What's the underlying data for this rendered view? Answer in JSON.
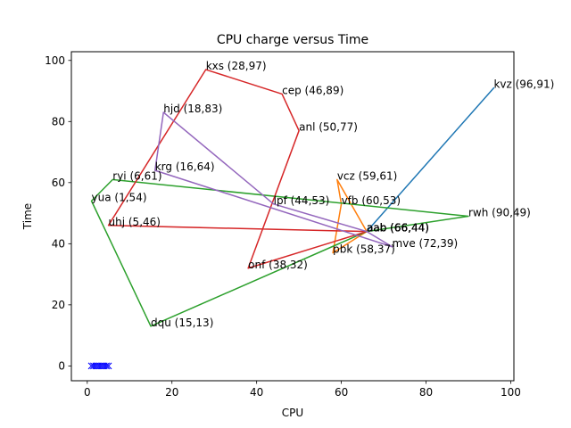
{
  "chart_data": {
    "type": "line",
    "title": "CPU charge versus Time",
    "xlabel": "CPU",
    "ylabel": "Time",
    "xlim": [
      -3.75,
      100.75
    ],
    "ylim": [
      -4.85,
      102.85
    ],
    "xticks": [
      0,
      20,
      40,
      60,
      80,
      100
    ],
    "yticks": [
      0,
      20,
      40,
      60,
      80,
      100
    ],
    "center": {
      "name": "aab",
      "x": 66,
      "y": 44,
      "label": "aab (66,44)"
    },
    "series": [
      {
        "color": "#1f77b4",
        "points": [
          {
            "name": "kvz",
            "x": 96,
            "y": 91,
            "label": "kvz (96,91)"
          }
        ]
      },
      {
        "color": "#ff7f0e",
        "points": [
          {
            "name": "vcz",
            "x": 59,
            "y": 61,
            "label": "vcz (59,61)"
          },
          {
            "name": "vfb",
            "x": 60,
            "y": 53,
            "label": "vfb (60,53)"
          },
          {
            "name": "pbk",
            "x": 58,
            "y": 37,
            "label": "pbk (58,37)"
          }
        ]
      },
      {
        "color": "#2ca02c",
        "points": [
          {
            "name": "rwh",
            "x": 90,
            "y": 49,
            "label": "rwh (90,49)"
          },
          {
            "name": "ryi",
            "x": 6,
            "y": 61,
            "label": "ryi (6,61)"
          },
          {
            "name": "yua",
            "x": 1,
            "y": 54,
            "label": "yua (1,54)"
          },
          {
            "name": "dqu",
            "x": 15,
            "y": 13,
            "label": "dqu (15,13)"
          }
        ]
      },
      {
        "color": "#d62728",
        "points": [
          {
            "name": "uhj",
            "x": 5,
            "y": 46,
            "label": "uhj (5,46)"
          },
          {
            "name": "kxs",
            "x": 28,
            "y": 97,
            "label": "kxs (28,97)"
          },
          {
            "name": "cep",
            "x": 46,
            "y": 89,
            "label": "cep (46,89)"
          },
          {
            "name": "anl",
            "x": 50,
            "y": 77,
            "label": "anl (50,77)"
          },
          {
            "name": "onf",
            "x": 38,
            "y": 32,
            "label": "onf (38,32)"
          }
        ]
      },
      {
        "color": "#9467bd",
        "points": [
          {
            "name": "mve",
            "x": 72,
            "y": 39,
            "label": "mve (72,39)"
          },
          {
            "name": "krg",
            "x": 16,
            "y": 64,
            "label": "krg (16,64)"
          },
          {
            "name": "hjd",
            "x": 18,
            "y": 83,
            "label": "hjd (18,83)"
          },
          {
            "name": "lpf",
            "x": 44,
            "y": 53,
            "label": "lpf (44,53)"
          }
        ]
      }
    ],
    "markers": {
      "color": "#0000ff",
      "symbol": "x",
      "y": 0,
      "x": [
        1,
        1.5,
        2,
        2.5,
        3,
        3.5,
        4,
        4.5,
        5
      ]
    }
  }
}
